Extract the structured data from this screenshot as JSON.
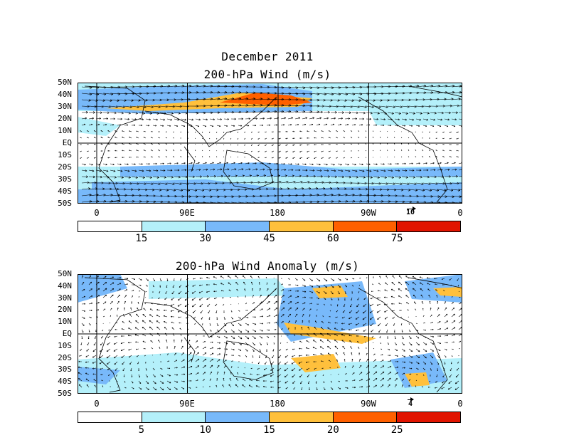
{
  "title": {
    "month": "December 2011",
    "panel1": "200-hPa Wind (m/s)",
    "panel2": "200-hPa Wind Anomaly (m/s)"
  },
  "axes": {
    "lat_labels": [
      "50N",
      "40N",
      "30N",
      "20N",
      "10N",
      "EQ",
      "10S",
      "20S",
      "30S",
      "40S",
      "50S"
    ],
    "lon_labels": [
      "0",
      "90E",
      "180",
      "90W",
      "0"
    ]
  },
  "panel1": {
    "ref_vector_label": "10",
    "colorbar_labels": [
      "15",
      "30",
      "45",
      "60",
      "75"
    ],
    "colors": [
      "#ffffff",
      "#b4f0fa",
      "#78b9fa",
      "#ffc03c",
      "#ff6000",
      "#e11400"
    ]
  },
  "panel2": {
    "ref_vector_label": "4",
    "colorbar_labels": [
      "5",
      "10",
      "15",
      "20",
      "25"
    ],
    "colors": [
      "#ffffff",
      "#b4f0fa",
      "#78b9fa",
      "#ffc03c",
      "#ff6000",
      "#e11400"
    ]
  }
}
